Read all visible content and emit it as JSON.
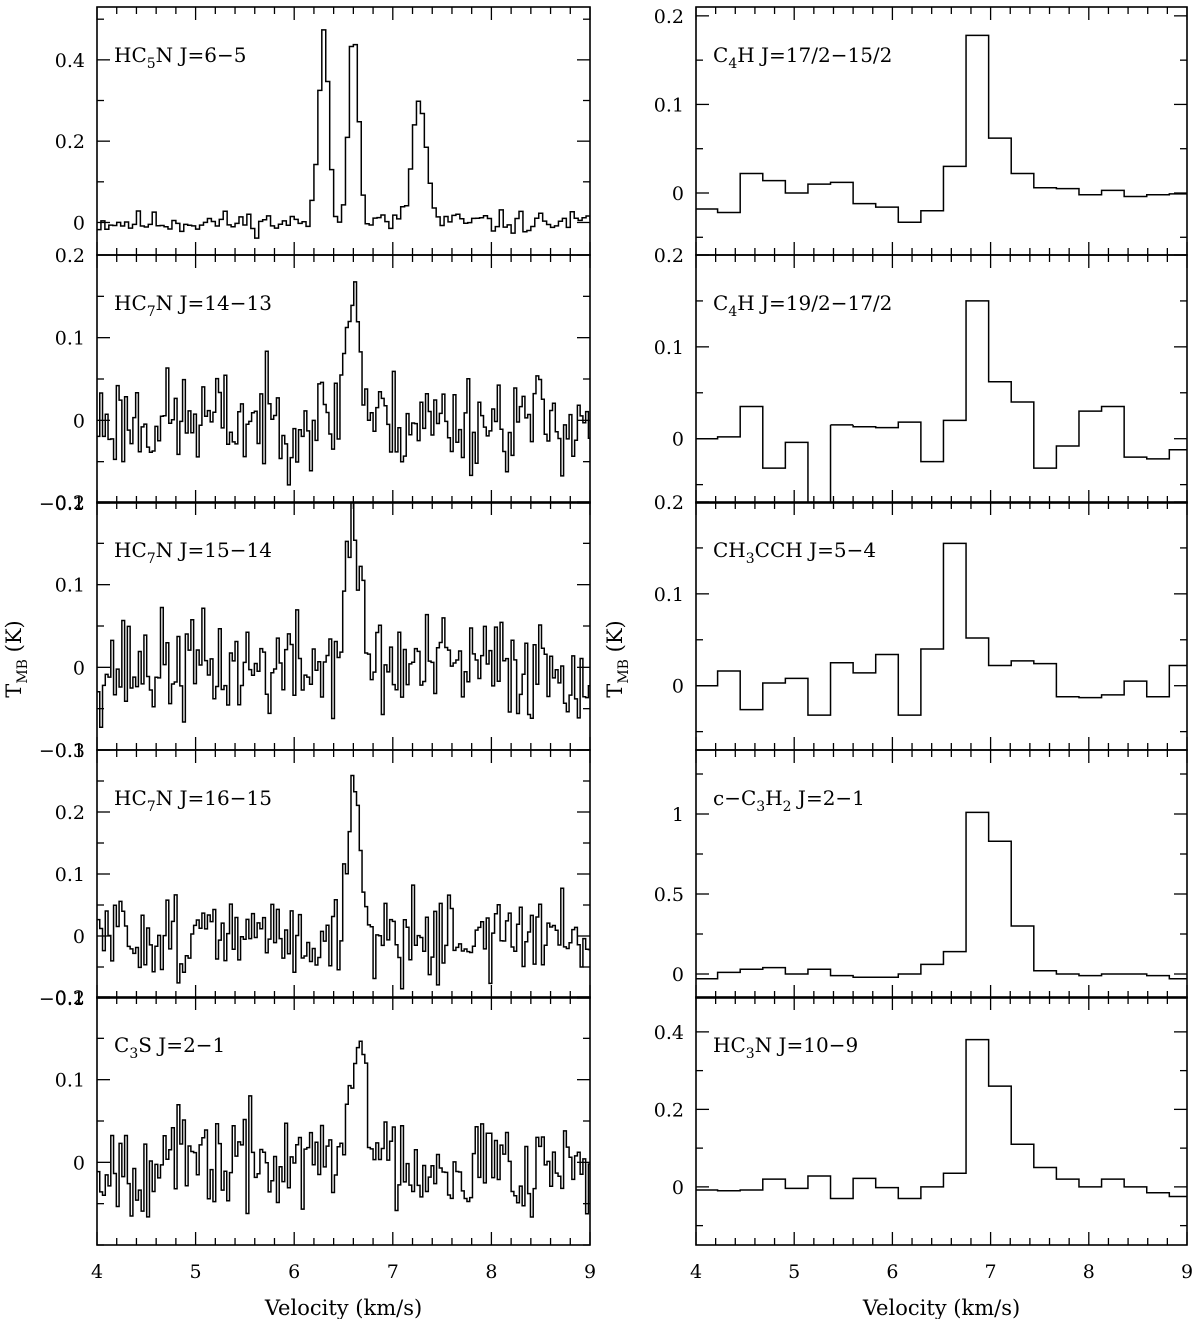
{
  "chart_data": [
    {
      "type": "line",
      "column": "left",
      "xlabel": "Velocity (km/s)",
      "ylabel_main": "T",
      "ylabel_sub": "MB",
      "ylabel_unit": "(K)",
      "xlim": [
        4,
        9
      ],
      "x_ticks": [
        "4",
        "5",
        "6",
        "7",
        "8",
        "9"
      ],
      "panels": [
        {
          "label_parts": [
            [
              "HC",
              "n"
            ],
            [
              "5",
              "s"
            ],
            [
              "N  J=6−5",
              "n"
            ]
          ],
          "ylim": [
            -0.08,
            0.53
          ],
          "y_ticks": [
            {
              "v": 0,
              "t": "0"
            },
            {
              "v": 0.2,
              "t": "0.2"
            },
            {
              "v": 0.4,
              "t": "0.4"
            }
          ],
          "noise": 0.014,
          "seed": 11,
          "step": 0.04,
          "lines": [
            {
              "v": 6.28,
              "a": 0.47,
              "w": 0.05
            },
            {
              "v": 6.58,
              "a": 0.48,
              "w": 0.05
            },
            {
              "v": 7.25,
              "a": 0.3,
              "w": 0.07
            }
          ]
        },
        {
          "label_parts": [
            [
              "HC",
              "n"
            ],
            [
              "7",
              "s"
            ],
            [
              "N  J=14−13",
              "n"
            ]
          ],
          "ylim": [
            -0.1,
            0.2
          ],
          "y_ticks": [
            {
              "v": -0.1,
              "t": "−0.1"
            },
            {
              "v": 0,
              "t": "0"
            },
            {
              "v": 0.1,
              "t": "0.1"
            },
            {
              "v": 0.2,
              "t": "0.2"
            }
          ],
          "noise": 0.03,
          "seed": 23,
          "step": 0.028,
          "lines": [
            {
              "v": 6.58,
              "a": 0.16,
              "w": 0.07
            }
          ]
        },
        {
          "label_parts": [
            [
              "HC",
              "n"
            ],
            [
              "7",
              "s"
            ],
            [
              "N  J=15−14",
              "n"
            ]
          ],
          "ylim": [
            -0.1,
            0.2
          ],
          "y_ticks": [
            {
              "v": -0.1,
              "t": "−0.1"
            },
            {
              "v": 0,
              "t": "0"
            },
            {
              "v": 0.1,
              "t": "0.1"
            },
            {
              "v": 0.2,
              "t": "0.2"
            }
          ],
          "noise": 0.032,
          "seed": 37,
          "step": 0.028,
          "lines": [
            {
              "v": 6.58,
              "a": 0.16,
              "w": 0.08
            }
          ]
        },
        {
          "label_parts": [
            [
              "HC",
              "n"
            ],
            [
              "7",
              "s"
            ],
            [
              "N  J=16−15",
              "n"
            ]
          ],
          "ylim": [
            -0.1,
            0.3
          ],
          "y_ticks": [
            {
              "v": -0.1,
              "t": "−0.1"
            },
            {
              "v": 0,
              "t": "0"
            },
            {
              "v": 0.1,
              "t": "0.1"
            },
            {
              "v": 0.2,
              "t": "0.2"
            },
            {
              "v": 0.3,
              "t": "0.3"
            }
          ],
          "noise": 0.033,
          "seed": 51,
          "step": 0.028,
          "lines": [
            {
              "v": 6.6,
              "a": 0.25,
              "w": 0.06
            }
          ]
        },
        {
          "label_parts": [
            [
              "C",
              "n"
            ],
            [
              "3",
              "s"
            ],
            [
              "S  J=2−1",
              "n"
            ]
          ],
          "ylim": [
            -0.1,
            0.2
          ],
          "y_ticks": [
            {
              "v": 0,
              "t": "0"
            },
            {
              "v": 0.1,
              "t": "0.1"
            },
            {
              "v": 0.2,
              "t": "0.2"
            }
          ],
          "noise": 0.03,
          "seed": 67,
          "step": 0.028,
          "lines": [
            {
              "v": 6.65,
              "a": 0.15,
              "w": 0.08
            }
          ]
        }
      ]
    },
    {
      "type": "line",
      "column": "right",
      "xlabel": "Velocity (km/s)",
      "ylabel_main": "T",
      "ylabel_sub": "MB",
      "ylabel_unit": "(K)",
      "xlim": [
        4,
        9
      ],
      "x_ticks": [
        "4",
        "5",
        "6",
        "7",
        "8",
        "9"
      ],
      "panels": [
        {
          "label_parts": [
            [
              "C",
              "n"
            ],
            [
              "4",
              "s"
            ],
            [
              "H  J=17/2−15/2",
              "n"
            ]
          ],
          "ylim": [
            -0.07,
            0.21
          ],
          "y_ticks": [
            {
              "v": 0,
              "t": "0"
            },
            {
              "v": 0.1,
              "t": "0.1"
            },
            {
              "v": 0.2,
              "t": "0.2"
            }
          ],
          "x": [
            4.0,
            4.22,
            4.45,
            4.68,
            4.91,
            5.14,
            5.37,
            5.6,
            5.83,
            6.06,
            6.29,
            6.52,
            6.75,
            6.98,
            7.21,
            7.44,
            7.67,
            7.9,
            8.13,
            8.36,
            8.59,
            8.82
          ],
          "y": [
            -0.018,
            -0.022,
            0.022,
            0.014,
            0.0,
            0.01,
            0.012,
            -0.012,
            -0.016,
            -0.033,
            -0.02,
            0.03,
            0.178,
            0.062,
            0.022,
            0.006,
            0.005,
            -0.002,
            0.003,
            -0.004,
            -0.002,
            -0.001
          ]
        },
        {
          "label_parts": [
            [
              "C",
              "n"
            ],
            [
              "4",
              "s"
            ],
            [
              "H  J=19/2−17/2",
              "n"
            ]
          ],
          "ylim": [
            -0.07,
            0.2
          ],
          "y_ticks": [
            {
              "v": 0,
              "t": "0"
            },
            {
              "v": 0.1,
              "t": "0.1"
            },
            {
              "v": 0.2,
              "t": "0.2"
            }
          ],
          "x": [
            4.0,
            4.22,
            4.45,
            4.68,
            4.91,
            5.14,
            5.37,
            5.6,
            5.83,
            6.06,
            6.29,
            6.52,
            6.75,
            6.98,
            7.21,
            7.44,
            7.67,
            7.9,
            8.13,
            8.36,
            8.59,
            8.82
          ],
          "y": [
            0.0,
            0.002,
            0.035,
            -0.032,
            -0.004,
            null,
            0.015,
            0.013,
            0.012,
            0.018,
            -0.025,
            0.02,
            0.15,
            0.062,
            0.04,
            -0.032,
            -0.008,
            0.03,
            0.035,
            -0.02,
            -0.022,
            -0.012
          ]
        },
        {
          "label_parts": [
            [
              "CH",
              "n"
            ],
            [
              "3",
              "s"
            ],
            [
              "CCH  J=5−4",
              "n"
            ]
          ],
          "ylim": [
            -0.07,
            0.2
          ],
          "y_ticks": [
            {
              "v": 0,
              "t": "0"
            },
            {
              "v": 0.1,
              "t": "0.1"
            },
            {
              "v": 0.2,
              "t": "0.2"
            }
          ],
          "x": [
            4.0,
            4.22,
            4.45,
            4.68,
            4.91,
            5.14,
            5.37,
            5.6,
            5.83,
            6.06,
            6.29,
            6.52,
            6.75,
            6.98,
            7.21,
            7.44,
            7.67,
            7.9,
            8.13,
            8.36,
            8.59,
            8.82
          ],
          "y": [
            0.0,
            0.016,
            -0.026,
            0.003,
            0.008,
            -0.032,
            0.025,
            0.014,
            0.034,
            -0.032,
            0.04,
            0.155,
            0.052,
            0.022,
            0.027,
            0.024,
            -0.012,
            -0.013,
            -0.01,
            0.005,
            -0.012,
            0.022
          ]
        },
        {
          "label_parts": [
            [
              "c−C",
              "n"
            ],
            [
              "3",
              "s"
            ],
            [
              "H",
              "n"
            ],
            [
              "2",
              "s"
            ],
            [
              "  J=2−1",
              "n"
            ]
          ],
          "ylim": [
            -0.15,
            1.4
          ],
          "y_ticks": [
            {
              "v": 0,
              "t": "0"
            },
            {
              "v": 0.5,
              "t": "0.5"
            },
            {
              "v": 1,
              "t": "1"
            }
          ],
          "x": [
            4.0,
            4.22,
            4.45,
            4.68,
            4.91,
            5.14,
            5.37,
            5.6,
            5.83,
            6.06,
            6.29,
            6.52,
            6.75,
            6.98,
            7.21,
            7.44,
            7.67,
            7.9,
            8.13,
            8.36,
            8.59,
            8.82
          ],
          "y": [
            -0.03,
            0.01,
            0.03,
            0.04,
            0.0,
            0.03,
            -0.01,
            -0.02,
            -0.02,
            0.0,
            0.06,
            0.14,
            1.01,
            0.83,
            0.3,
            0.02,
            0.0,
            -0.01,
            0.0,
            0.0,
            -0.01,
            -0.03
          ]
        },
        {
          "label_parts": [
            [
              "HC",
              "n"
            ],
            [
              "3",
              "s"
            ],
            [
              "N  J=10−9",
              "n"
            ]
          ],
          "ylim": [
            -0.15,
            0.49
          ],
          "y_ticks": [
            {
              "v": 0,
              "t": "0"
            },
            {
              "v": 0.2,
              "t": "0.2"
            },
            {
              "v": 0.4,
              "t": "0.4"
            }
          ],
          "x": [
            4.0,
            4.22,
            4.45,
            4.68,
            4.91,
            5.14,
            5.37,
            5.6,
            5.83,
            6.06,
            6.29,
            6.52,
            6.75,
            6.98,
            7.21,
            7.44,
            7.67,
            7.9,
            8.13,
            8.36,
            8.59,
            8.82
          ],
          "y": [
            -0.008,
            -0.01,
            -0.008,
            0.02,
            -0.004,
            0.028,
            -0.03,
            0.022,
            -0.002,
            -0.03,
            0.0,
            0.035,
            0.38,
            0.26,
            0.11,
            0.05,
            0.02,
            0.0,
            0.02,
            0.0,
            -0.015,
            -0.025
          ]
        }
      ]
    }
  ]
}
